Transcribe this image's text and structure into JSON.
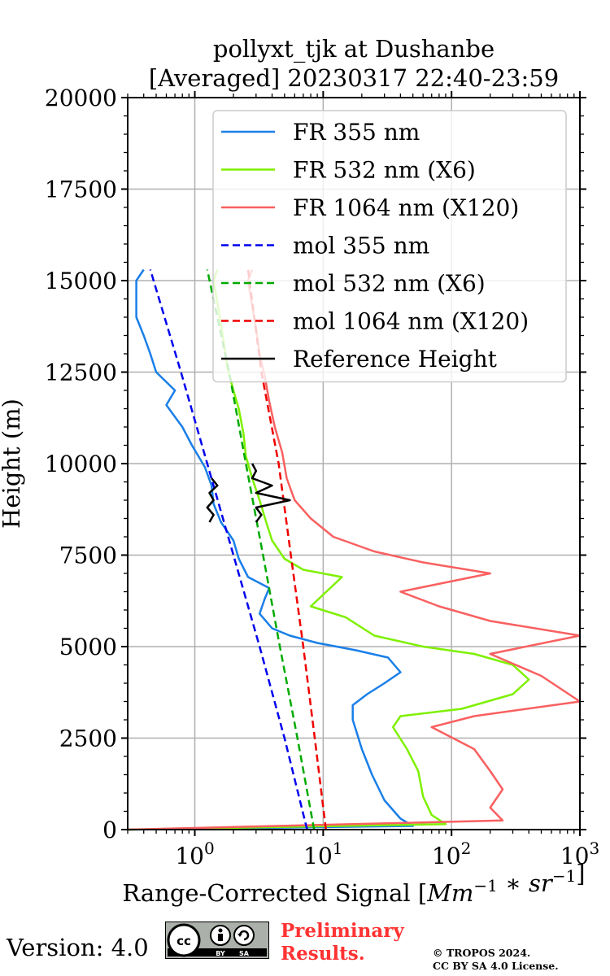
{
  "title_line1": "pollyxt_tjk at Dushanbe",
  "title_line2": "[Averaged] 20230317 22:40-23:59",
  "footer": {
    "version": "Version: 4.0",
    "cc_icon": "cc-by-sa-icon",
    "cc_text_by": "BY",
    "cc_text_sa": "SA",
    "preliminary_line1": "Preliminary",
    "preliminary_line2": "Results.",
    "copyright_line1": "© TROPOS 2024.",
    "copyright_line2": "CC BY SA 4.0 License."
  },
  "chart_data": {
    "type": "line",
    "title": "pollyxt_tjk at Dushanbe [Averaged] 20230317 22:40-23:59",
    "xlabel": "Range-Corrected Signal [Mm^-1 * sr^-1]",
    "ylabel": "Height (m)",
    "xscale": "log",
    "xlim": [
      0.3,
      1000
    ],
    "ylim": [
      0,
      20000
    ],
    "xticks": [
      1,
      10,
      100,
      1000
    ],
    "xtick_labels": [
      {
        "base": "10",
        "exp": "0"
      },
      {
        "base": "10",
        "exp": "1"
      },
      {
        "base": "10",
        "exp": "2"
      },
      {
        "base": "10",
        "exp": "3"
      }
    ],
    "yticks": [
      0,
      2500,
      5000,
      7500,
      10000,
      12500,
      15000,
      17500,
      20000
    ],
    "ytick_labels": [
      "0",
      "2500",
      "5000",
      "7500",
      "10000",
      "12500",
      "15000",
      "17500",
      "20000"
    ],
    "grid": true,
    "legend_position": "top-right",
    "series": [
      {
        "name": "FR 355 nm",
        "color": "#1a7fe8",
        "style": "solid",
        "points": [
          [
            0.3,
            0
          ],
          [
            50,
            100
          ],
          [
            40,
            300
          ],
          [
            30,
            800
          ],
          [
            24,
            1500
          ],
          [
            20,
            2200
          ],
          [
            17,
            3000
          ],
          [
            17,
            3400
          ],
          [
            22,
            3700
          ],
          [
            30,
            4000
          ],
          [
            40,
            4300
          ],
          [
            32,
            4700
          ],
          [
            18,
            4900
          ],
          [
            9,
            5100
          ],
          [
            5.5,
            5300
          ],
          [
            4,
            5500
          ],
          [
            3.2,
            5900
          ],
          [
            3.5,
            6300
          ],
          [
            3.8,
            6600
          ],
          [
            2.6,
            6900
          ],
          [
            2.2,
            7400
          ],
          [
            2.0,
            7900
          ],
          [
            1.6,
            8400
          ],
          [
            1.4,
            8900
          ],
          [
            1.35,
            9400
          ],
          [
            1.2,
            9900
          ],
          [
            0.95,
            10500
          ],
          [
            0.8,
            11000
          ],
          [
            0.6,
            11600
          ],
          [
            0.7,
            12000
          ],
          [
            0.5,
            12500
          ],
          [
            0.45,
            13000
          ],
          [
            0.4,
            13500
          ],
          [
            0.35,
            14000
          ],
          [
            0.35,
            14500
          ],
          [
            0.35,
            15000
          ],
          [
            0.4,
            15300
          ]
        ]
      },
      {
        "name": "FR 532 nm (X6)",
        "color": "#7ff000",
        "style": "solid",
        "points": [
          [
            0.3,
            0
          ],
          [
            90,
            150
          ],
          [
            70,
            400
          ],
          [
            60,
            900
          ],
          [
            55,
            1600
          ],
          [
            45,
            2200
          ],
          [
            35,
            2800
          ],
          [
            40,
            3100
          ],
          [
            120,
            3300
          ],
          [
            300,
            3700
          ],
          [
            400,
            4100
          ],
          [
            300,
            4500
          ],
          [
            150,
            4800
          ],
          [
            60,
            5000
          ],
          [
            25,
            5300
          ],
          [
            15,
            5800
          ],
          [
            8,
            6100
          ],
          [
            14,
            6900
          ],
          [
            7,
            7100
          ],
          [
            5,
            7400
          ],
          [
            4,
            7900
          ],
          [
            3.6,
            8400
          ],
          [
            3.2,
            9000
          ],
          [
            2.8,
            9600
          ],
          [
            2.5,
            10200
          ],
          [
            2.4,
            10800
          ],
          [
            2.2,
            11500
          ],
          [
            2.0,
            12000
          ],
          [
            1.8,
            12600
          ],
          [
            1.7,
            13200
          ],
          [
            1.6,
            13800
          ],
          [
            1.5,
            14400
          ],
          [
            1.4,
            15000
          ],
          [
            1.5,
            15300
          ]
        ]
      },
      {
        "name": "FR 1064 nm (X120)",
        "color": "#f96060",
        "style": "solid",
        "points": [
          [
            0.3,
            0
          ],
          [
            250,
            250
          ],
          [
            200,
            600
          ],
          [
            250,
            1100
          ],
          [
            200,
            1600
          ],
          [
            150,
            2200
          ],
          [
            70,
            2800
          ],
          [
            150,
            3100
          ],
          [
            1000,
            3500
          ],
          [
            500,
            4200
          ],
          [
            200,
            4800
          ],
          [
            1000,
            5300
          ],
          [
            200,
            5700
          ],
          [
            80,
            6100
          ],
          [
            40,
            6500
          ],
          [
            200,
            7000
          ],
          [
            60,
            7300
          ],
          [
            25,
            7600
          ],
          [
            12,
            8000
          ],
          [
            8,
            8500
          ],
          [
            6,
            9000
          ],
          [
            5.2,
            9600
          ],
          [
            4.8,
            10300
          ],
          [
            4.2,
            11000
          ],
          [
            3.8,
            11700
          ],
          [
            3.5,
            12400
          ],
          [
            3.2,
            13000
          ],
          [
            3.0,
            13700
          ],
          [
            2.8,
            14300
          ],
          [
            2.6,
            15000
          ],
          [
            2.8,
            15300
          ]
        ]
      },
      {
        "name": "mol 355 nm",
        "color": "#0000ee",
        "style": "dashed",
        "points": [
          [
            7.5,
            0
          ],
          [
            5.0,
            2500
          ],
          [
            3.2,
            5000
          ],
          [
            2.0,
            7500
          ],
          [
            1.25,
            10000
          ],
          [
            0.78,
            12500
          ],
          [
            0.45,
            15300
          ]
        ]
      },
      {
        "name": "mol 532 nm (X6)",
        "color": "#00aa00",
        "style": "dashed",
        "points": [
          [
            8.5,
            0
          ],
          [
            6.3,
            2500
          ],
          [
            4.6,
            5000
          ],
          [
            3.4,
            7500
          ],
          [
            2.5,
            10000
          ],
          [
            1.85,
            12500
          ],
          [
            1.25,
            15300
          ]
        ]
      },
      {
        "name": "mol 1064 nm (X120)",
        "color": "#ee0000",
        "style": "dashed",
        "points": [
          [
            10.5,
            0
          ],
          [
            8.6,
            2500
          ],
          [
            7.0,
            5000
          ],
          [
            5.6,
            7500
          ],
          [
            4.5,
            10000
          ],
          [
            3.3,
            12500
          ],
          [
            2.6,
            15300
          ]
        ]
      },
      {
        "name": "Reference Height",
        "color": "#000000",
        "style": "solid",
        "segments": [
          [
            [
              1.3,
              8400
            ],
            [
              1.4,
              8600
            ],
            [
              1.25,
              8800
            ],
            [
              1.4,
              9000
            ],
            [
              1.3,
              9200
            ],
            [
              1.5,
              9400
            ],
            [
              1.35,
              9600
            ]
          ],
          [
            [
              3.0,
              8400
            ],
            [
              3.3,
              8600
            ],
            [
              3.0,
              8800
            ],
            [
              5.5,
              9000
            ],
            [
              3.0,
              9200
            ],
            [
              4.0,
              9400
            ],
            [
              2.8,
              9600
            ],
            [
              3.0,
              9800
            ],
            [
              2.8,
              10000
            ]
          ]
        ]
      }
    ]
  }
}
